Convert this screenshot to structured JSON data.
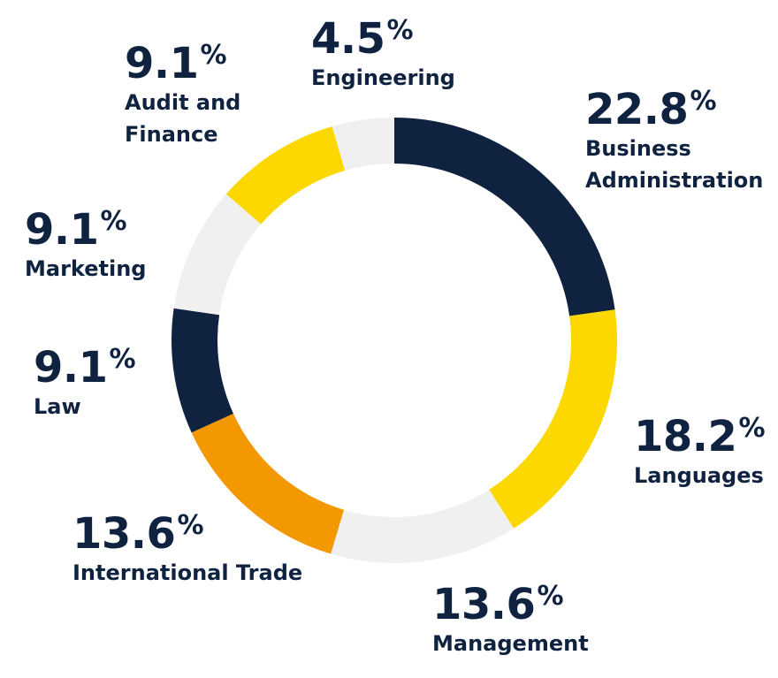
{
  "chart_data": {
    "type": "pie",
    "variant": "donut",
    "title": "",
    "categories": [
      "Business Administration",
      "Languages",
      "Management",
      "International Trade",
      "Law",
      "Marketing",
      "Audit and Finance",
      "Engineering"
    ],
    "values": [
      22.8,
      18.2,
      13.6,
      13.6,
      9.1,
      9.1,
      9.1,
      4.5
    ],
    "value_labels": [
      "22.8",
      "18.2",
      "13.6",
      "13.6",
      "9.1",
      "9.1",
      "9.1",
      "4.5"
    ],
    "unit": "%",
    "colors": [
      "#0f2340",
      "#fcd800",
      "#f0f0f0",
      "#f39800",
      "#0f2340",
      "#f0f0f0",
      "#fcd800",
      "#f0f0f0"
    ],
    "start_angle_deg": 0,
    "direction": "clockwise",
    "legend": "none (labels placed around the ring)"
  }
}
